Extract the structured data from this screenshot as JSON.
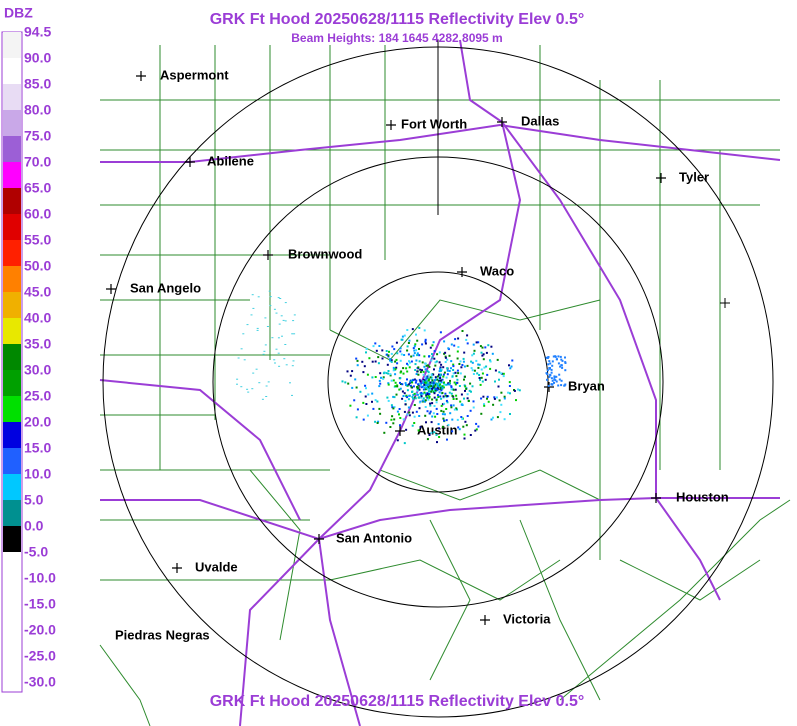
{
  "header": {
    "title": "GRK Ft Hood 20250628/1115 Reflectivity Elev 0.5°",
    "subtitle": "Beam Heights: 184 1645 4282 8095 m",
    "footer": "GRK Ft Hood 20250628/1115 Reflectivity Elev 0.5°"
  },
  "legend": {
    "title": "DBZ",
    "labels": [
      "94.5",
      "90.0",
      "85.0",
      "80.0",
      "75.0",
      "70.0",
      "65.0",
      "60.0",
      "55.0",
      "50.0",
      "45.0",
      "40.0",
      "35.0",
      "30.0",
      "25.0",
      "20.0",
      "15.0",
      "10.0",
      "5.0",
      "0.0",
      "-5.0",
      "-10.0",
      "-15.0",
      "-20.0",
      "-25.0",
      "-30.0"
    ]
  },
  "cities": [
    "Aspermont",
    "Fort Worth",
    "Dallas",
    "Abilene",
    "Tyler",
    "Brownwood",
    "Waco",
    "San Angelo",
    "Bryan",
    "Austin",
    "Houston",
    "San Antonio",
    "Uvalde",
    "Victoria",
    "Piedras Negras"
  ]
}
